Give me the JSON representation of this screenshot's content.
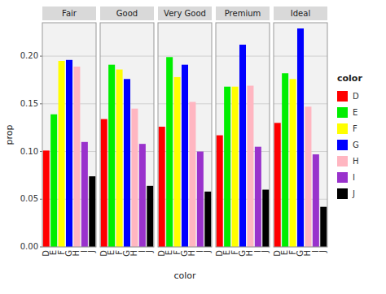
{
  "chart_data": [
    {
      "type": "bar",
      "title": "Fair",
      "ylabel": "prop",
      "xlabel": "color",
      "legend": "right",
      "legend_title": "color",
      "categories": [
        "D",
        "E",
        "F",
        "G",
        "H",
        "I",
        "J"
      ],
      "values": [
        0.101,
        0.139,
        0.195,
        0.196,
        0.189,
        0.11,
        0.074
      ],
      "colors": [
        "#FF0000",
        "#00EE00",
        "#FFFF00",
        "#0000FF",
        "#FFB6C1",
        "#9932CC",
        "#000000"
      ],
      "ylim": [
        0.0,
        0.235
      ],
      "yticks": [
        {
          "value": 0.0,
          "label": "0.00"
        },
        0.05,
        {
          "value": 0.1,
          "label": "0.10"
        },
        0.15,
        {
          "value": 0.2,
          "label": "0.20"
        }
      ],
      "grid": true,
      "tick_labels": true
    },
    {
      "type": "bar",
      "title": "Good",
      "categories": [
        "D",
        "E",
        "F",
        "G",
        "H",
        "I",
        "J"
      ],
      "values": [
        0.134,
        0.191,
        0.186,
        0.176,
        0.145,
        0.108,
        0.064
      ],
      "colors": [
        "#FF0000",
        "#00EE00",
        "#FFFF00",
        "#0000FF",
        "#FFB6C1",
        "#9932CC",
        "#000000"
      ],
      "ylim": [
        0.0,
        0.235
      ],
      "yticks": [
        {
          "value": 0.0,
          "label": "0.00"
        },
        0.05,
        {
          "value": 0.1,
          "label": "0.10"
        },
        0.15,
        {
          "value": 0.2,
          "label": "0.20"
        }
      ],
      "grid": true,
      "tick_labels": "x"
    },
    {
      "type": "bar",
      "title": "Very Good",
      "categories": [
        "D",
        "E",
        "F",
        "G",
        "H",
        "I",
        "J"
      ],
      "values": [
        0.126,
        0.199,
        0.178,
        0.191,
        0.152,
        0.1,
        0.058
      ],
      "colors": [
        "#FF0000",
        "#00EE00",
        "#FFFF00",
        "#0000FF",
        "#FFB6C1",
        "#9932CC",
        "#000000"
      ],
      "ylim": [
        0.0,
        0.235
      ],
      "yticks": [
        {
          "value": 0.0,
          "label": "0.00"
        },
        0.05,
        {
          "value": 0.1,
          "label": "0.10"
        },
        0.15,
        {
          "value": 0.2,
          "label": "0.20"
        }
      ],
      "grid": true,
      "tick_labels": "x"
    },
    {
      "type": "bar",
      "title": "Premium",
      "categories": [
        "D",
        "E",
        "F",
        "G",
        "H",
        "I",
        "J"
      ],
      "values": [
        0.117,
        0.168,
        0.168,
        0.212,
        0.169,
        0.105,
        0.06
      ],
      "colors": [
        "#FF0000",
        "#00EE00",
        "#FFFF00",
        "#0000FF",
        "#FFB6C1",
        "#9932CC",
        "#000000"
      ],
      "ylim": [
        0.0,
        0.235
      ],
      "yticks": [
        {
          "value": 0.0,
          "label": "0.00"
        },
        0.05,
        {
          "value": 0.1,
          "label": "0.10"
        },
        0.15,
        {
          "value": 0.2,
          "label": "0.20"
        }
      ],
      "grid": true,
      "tick_labels": "x"
    },
    {
      "type": "bar",
      "title": "Ideal",
      "categories": [
        "D",
        "E",
        "F",
        "G",
        "H",
        "I",
        "J"
      ],
      "values": [
        0.13,
        0.182,
        0.176,
        0.229,
        0.147,
        0.097,
        0.042
      ],
      "colors": [
        "#FF0000",
        "#00EE00",
        "#FFFF00",
        "#0000FF",
        "#FFB6C1",
        "#9932CC",
        "#000000"
      ],
      "ylim": [
        0.0,
        0.235
      ],
      "yticks": [
        {
          "value": 0.0,
          "label": "0.00"
        },
        0.05,
        {
          "value": 0.1,
          "label": "0.10"
        },
        0.15,
        {
          "value": 0.2,
          "label": "0.20"
        }
      ],
      "grid": true,
      "tick_labels": "x"
    }
  ]
}
